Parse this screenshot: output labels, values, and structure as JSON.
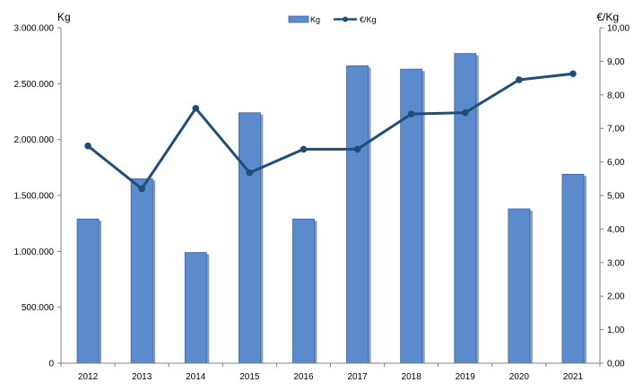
{
  "chart_data": {
    "type": "bar+line",
    "categories": [
      "2012",
      "2013",
      "2014",
      "2015",
      "2016",
      "2017",
      "2018",
      "2019",
      "2020",
      "2021"
    ],
    "series": [
      {
        "name": "Kg",
        "type": "bar",
        "axis": "left",
        "color": "#5B8ACD",
        "values": [
          1290000,
          1650000,
          990000,
          2240000,
          1290000,
          2660000,
          2630000,
          2770000,
          1380000,
          1690000
        ]
      },
      {
        "name": "€/Kg",
        "type": "line",
        "axis": "right",
        "color": "#1F4E79",
        "values": [
          6.48,
          5.2,
          7.6,
          5.68,
          6.38,
          6.38,
          7.43,
          7.47,
          8.45,
          8.63
        ]
      }
    ],
    "left_axis": {
      "label": "Kg",
      "ylim": [
        0,
        3000000
      ],
      "ticks": [
        "0",
        "500.000",
        "1.000.000",
        "1.500.000",
        "2.000.000",
        "2.500.000",
        "3.000.000"
      ]
    },
    "right_axis": {
      "label": "€/Kg",
      "ylim": [
        0,
        10
      ],
      "ticks": [
        "0,00",
        "1,00",
        "2,00",
        "3,00",
        "4,00",
        "5,00",
        "6,00",
        "7,00",
        "8,00",
        "9,00",
        "10,00"
      ]
    },
    "legend": {
      "position": "top-center",
      "items": [
        "Kg",
        "€/Kg"
      ]
    },
    "grid": false
  }
}
